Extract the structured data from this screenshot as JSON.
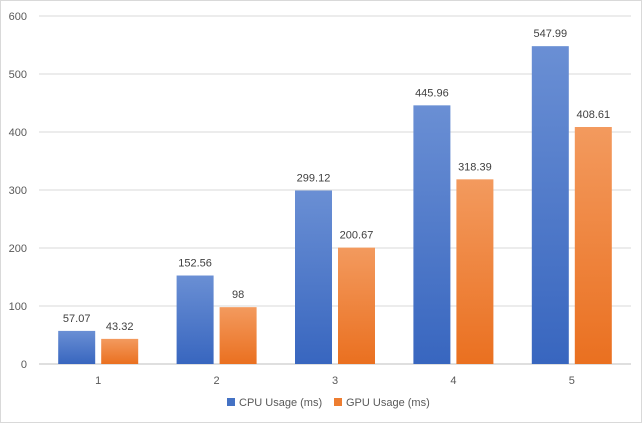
{
  "chart_data": {
    "type": "bar",
    "categories": [
      "1",
      "2",
      "3",
      "4",
      "5"
    ],
    "series": [
      {
        "name": "CPU Usage (ms)",
        "values": [
          57.07,
          152.56,
          299.12,
          445.96,
          547.99
        ],
        "labels": [
          "57.07",
          "152.56",
          "299.12",
          "445.96",
          "547.99"
        ],
        "color": "#4472c4"
      },
      {
        "name": "GPU Usage (ms)",
        "values": [
          43.32,
          98,
          200.67,
          318.39,
          408.61
        ],
        "labels": [
          "43.32",
          "98",
          "200.67",
          "318.39",
          "408.61"
        ],
        "color": "#ed7d31"
      }
    ],
    "y_ticks": [
      "0",
      "100",
      "200",
      "300",
      "400",
      "500",
      "600"
    ],
    "ylim": [
      0,
      600
    ],
    "title": "",
    "xlabel": "",
    "ylabel": "",
    "grid": true,
    "legend_position": "bottom"
  }
}
